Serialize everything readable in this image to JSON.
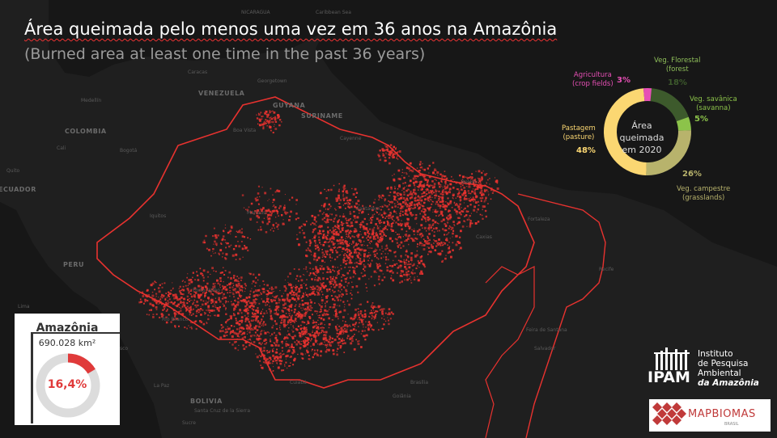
{
  "title": "Área queimada pelo menos uma vez em 36 anos na Amazônia",
  "subtitle": "(Burned area at least one time in the past 36 years)",
  "map": {
    "colors": {
      "background": "#1c1c1c",
      "land": "#2a2a2a",
      "ocean": "#181818",
      "burn": "#e8322f"
    },
    "places": [
      {
        "name": "NICARAGUA"
      },
      {
        "name": "Caribbean Sea"
      },
      {
        "name": "Caracas"
      },
      {
        "name": "VENEZUELA"
      },
      {
        "name": "Georgetown"
      },
      {
        "name": "GUYANA"
      },
      {
        "name": "SURINAME"
      },
      {
        "name": "Cayenne"
      },
      {
        "name": "Boa Vista"
      },
      {
        "name": "COLOMBIA"
      },
      {
        "name": "Bogotá"
      },
      {
        "name": "Medellín"
      },
      {
        "name": "Cali"
      },
      {
        "name": "Quito"
      },
      {
        "name": "ECUADOR"
      },
      {
        "name": "Belém"
      },
      {
        "name": "Manaus"
      },
      {
        "name": "Santarém"
      },
      {
        "name": "Iquitos"
      },
      {
        "name": "Fortaleza"
      },
      {
        "name": "Caxias"
      },
      {
        "name": "Recife"
      },
      {
        "name": "PERU"
      },
      {
        "name": "Lima"
      },
      {
        "name": "Porto Velho"
      },
      {
        "name": "Rio Branco"
      },
      {
        "name": "Cusco"
      },
      {
        "name": "BOLIVIA"
      },
      {
        "name": "La Paz"
      },
      {
        "name": "Santa Cruz de la Sierra"
      },
      {
        "name": "Feira de Santana"
      },
      {
        "name": "Salvador"
      },
      {
        "name": "Goiânia"
      },
      {
        "name": "Brasília"
      },
      {
        "name": "Cuiabá"
      },
      {
        "name": "Sucre"
      }
    ]
  },
  "inset": {
    "title": "Amazônia",
    "area": "690.028 km²",
    "percent_label": "16,4%",
    "percent_value": 16.4,
    "colors": {
      "fill": "#e03a3a",
      "track": "#dcdcdc"
    }
  },
  "chart_data": {
    "type": "pie",
    "variant": "donut",
    "center_text": [
      "Área",
      "queimada",
      "em 2020"
    ],
    "slices": [
      {
        "label": "Veg. Florestal",
        "sublabel": "(forest",
        "value": 18,
        "value_label": "18%",
        "color": "#3d5a2c"
      },
      {
        "label": "Veg. savânica",
        "sublabel": "(savanna)",
        "value": 5,
        "value_label": "5%",
        "color": "#8cc34a"
      },
      {
        "label": "Veg. campestre",
        "sublabel": "(grasslands)",
        "value": 26,
        "value_label": "26%",
        "color": "#b8b36c"
      },
      {
        "label": "Pastagem",
        "sublabel": "(pasture)",
        "value": 48,
        "value_label": "48%",
        "color": "#fbd772"
      },
      {
        "label": "Agricultura",
        "sublabel": "(crop fields)",
        "value": 3,
        "value_label": "3%",
        "color": "#e64fb5"
      }
    ]
  },
  "logos": {
    "ipam": {
      "short": "IPAM",
      "lines": [
        "Instituto",
        "de Pesquisa",
        "Ambiental",
        "da Amazônia"
      ]
    },
    "mapbiomas": {
      "name": "MAPBIOMAS",
      "sub": "BRASIL"
    }
  }
}
